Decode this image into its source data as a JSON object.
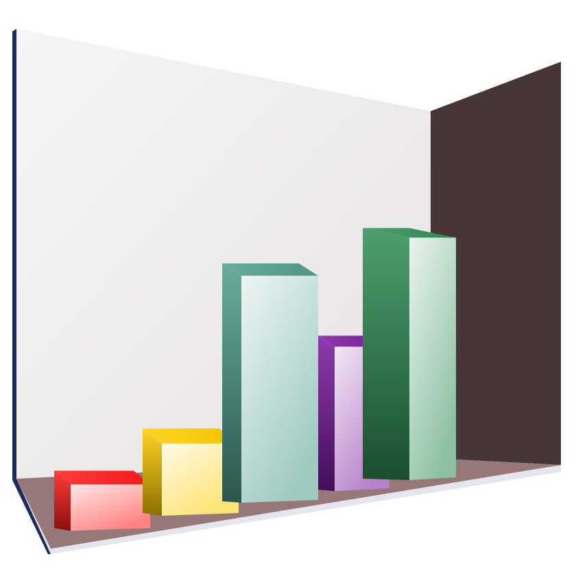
{
  "chart_data": {
    "type": "bar",
    "style": "3d",
    "title": "",
    "xlabel": "",
    "ylabel": "",
    "categories": [
      "",
      "",
      "",
      "",
      ""
    ],
    "values": [
      9,
      14,
      44,
      28,
      47
    ],
    "ylim": [
      0,
      50
    ],
    "grid": false,
    "legend": "none",
    "bar_colors": [
      "#ff1a1a",
      "#ffcc00",
      "#4f9e8c",
      "#7a1a9e",
      "#2f8e55"
    ]
  },
  "colors": {
    "back_wall": "#f1eeee",
    "side_wall": "#463638",
    "floor": "#977878",
    "floor_front_edge": "#e5e5ee",
    "wall_left_edge": "#1a2d5a"
  }
}
